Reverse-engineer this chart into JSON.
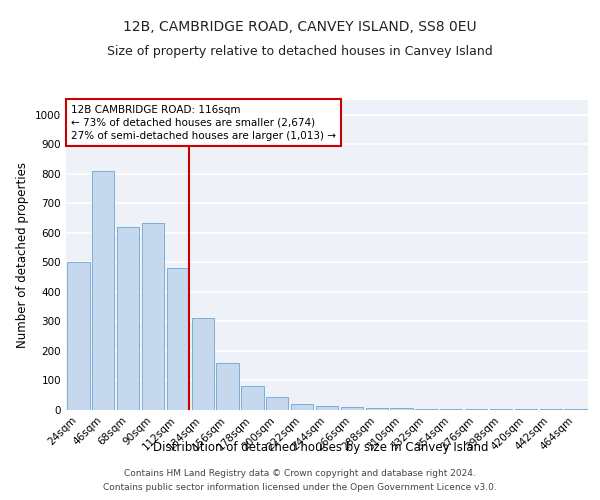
{
  "title": "12B, CAMBRIDGE ROAD, CANVEY ISLAND, SS8 0EU",
  "subtitle": "Size of property relative to detached houses in Canvey Island",
  "xlabel": "Distribution of detached houses by size in Canvey Island",
  "ylabel": "Number of detached properties",
  "footnote1": "Contains HM Land Registry data © Crown copyright and database right 2024.",
  "footnote2": "Contains public sector information licensed under the Open Government Licence v3.0.",
  "categories": [
    "24sqm",
    "46sqm",
    "68sqm",
    "90sqm",
    "112sqm",
    "134sqm",
    "156sqm",
    "178sqm",
    "200sqm",
    "222sqm",
    "244sqm",
    "266sqm",
    "288sqm",
    "310sqm",
    "332sqm",
    "354sqm",
    "376sqm",
    "398sqm",
    "420sqm",
    "442sqm",
    "464sqm"
  ],
  "values": [
    500,
    810,
    620,
    635,
    480,
    310,
    160,
    80,
    45,
    20,
    15,
    10,
    8,
    6,
    5,
    4,
    3,
    3,
    2,
    2,
    5
  ],
  "bar_color": "#c5d8ed",
  "bar_edge_color": "#7bafd4",
  "highlight_color": "#cc0000",
  "annotation_text": "12B CAMBRIDGE ROAD: 116sqm\n← 73% of detached houses are smaller (2,674)\n27% of semi-detached houses are larger (1,013) →",
  "annotation_box_color": "#ffffff",
  "annotation_box_edge": "#cc0000",
  "ylim": [
    0,
    1050
  ],
  "yticks": [
    0,
    100,
    200,
    300,
    400,
    500,
    600,
    700,
    800,
    900,
    1000
  ],
  "bg_color": "#eef2f8",
  "grid_color": "#ffffff",
  "title_fontsize": 10,
  "subtitle_fontsize": 9,
  "axis_label_fontsize": 8.5,
  "tick_fontsize": 7.5,
  "annotation_fontsize": 7.5,
  "footnote_fontsize": 6.5
}
